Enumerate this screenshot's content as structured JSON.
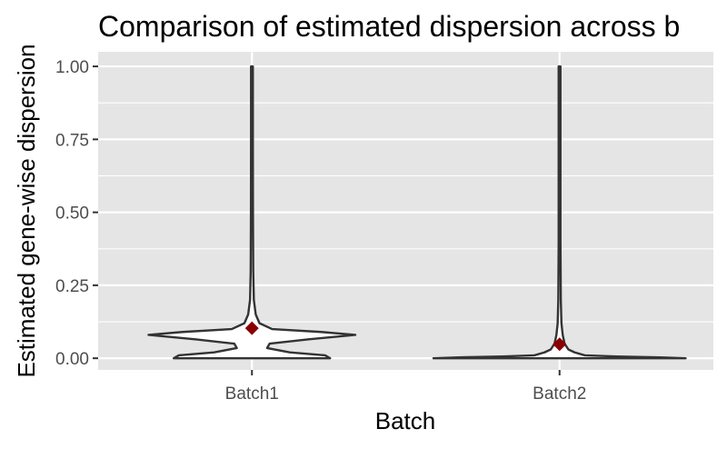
{
  "chart_data": {
    "type": "violin",
    "title": "Comparison of estimated dispersion across b",
    "xlabel": "Batch",
    "ylabel": "Estimated gene-wise dispersion",
    "categories": [
      "Batch1",
      "Batch2"
    ],
    "ylim": [
      -0.04,
      1.05
    ],
    "yticks": [
      0.0,
      0.25,
      0.5,
      0.75,
      1.0
    ],
    "ytick_labels": [
      "0.00",
      "0.25",
      "0.50",
      "0.75",
      "1.00"
    ],
    "grid": true,
    "legend": "none",
    "violins": [
      {
        "category": "Batch1",
        "range": [
          0.0,
          1.0
        ],
        "mean": 0.103,
        "density_profile": [
          {
            "y": 0.0,
            "width": 0.62
          },
          {
            "y": 0.01,
            "width": 0.58
          },
          {
            "y": 0.02,
            "width": 0.3
          },
          {
            "y": 0.035,
            "width": 0.12
          },
          {
            "y": 0.05,
            "width": 0.14
          },
          {
            "y": 0.065,
            "width": 0.45
          },
          {
            "y": 0.08,
            "width": 0.82
          },
          {
            "y": 0.09,
            "width": 0.55
          },
          {
            "y": 0.1,
            "width": 0.16
          },
          {
            "y": 0.12,
            "width": 0.06
          },
          {
            "y": 0.15,
            "width": 0.03
          },
          {
            "y": 0.2,
            "width": 0.015
          },
          {
            "y": 0.3,
            "width": 0.01
          },
          {
            "y": 0.5,
            "width": 0.008
          },
          {
            "y": 0.75,
            "width": 0.007
          },
          {
            "y": 1.0,
            "width": 0.006
          }
        ]
      },
      {
        "category": "Batch2",
        "range": [
          0.0,
          1.0
        ],
        "mean": 0.048,
        "density_profile": [
          {
            "y": 0.0,
            "width": 1.0
          },
          {
            "y": 0.003,
            "width": 0.8
          },
          {
            "y": 0.006,
            "width": 0.45
          },
          {
            "y": 0.01,
            "width": 0.2
          },
          {
            "y": 0.02,
            "width": 0.12
          },
          {
            "y": 0.03,
            "width": 0.07
          },
          {
            "y": 0.05,
            "width": 0.04
          },
          {
            "y": 0.08,
            "width": 0.025
          },
          {
            "y": 0.12,
            "width": 0.015
          },
          {
            "y": 0.2,
            "width": 0.01
          },
          {
            "y": 0.4,
            "width": 0.007
          },
          {
            "y": 0.7,
            "width": 0.006
          },
          {
            "y": 1.0,
            "width": 0.006
          }
        ]
      }
    ],
    "colors": {
      "panel_background": "#e5e5e5",
      "grid": "#ffffff",
      "violin_fill": "#ffffff",
      "violin_outline": "#333333",
      "mean_marker": "#8b0000",
      "tick_label": "#4d4d4d",
      "axis_title": "#000000"
    }
  }
}
